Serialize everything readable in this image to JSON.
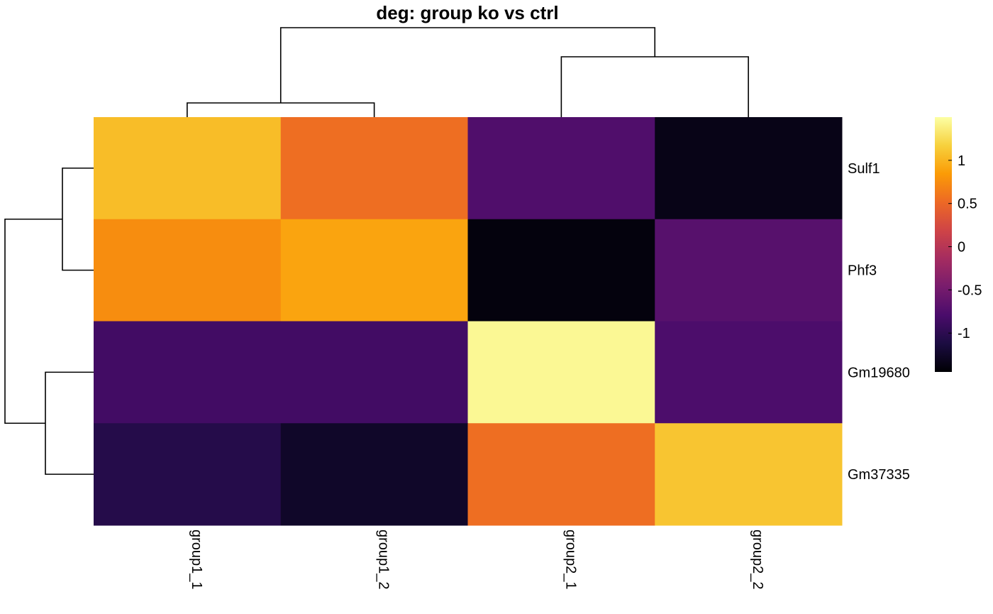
{
  "chart_data": {
    "type": "heatmap",
    "title": "deg: group ko vs ctrl",
    "columns": [
      "group1_1",
      "group1_2",
      "group2_1",
      "group2_2"
    ],
    "rows": [
      "Sulf1",
      "Phf3",
      "Gm19680",
      "Gm37335"
    ],
    "values": [
      [
        1.05,
        0.55,
        -0.75,
        -1.35
      ],
      [
        0.75,
        0.9,
        -1.4,
        -0.7
      ],
      [
        -0.85,
        -0.85,
        1.45,
        -0.78
      ],
      [
        -1.05,
        -1.25,
        0.55,
        1.1
      ]
    ],
    "colorbar": {
      "min": -1.45,
      "max": 1.5,
      "ticks": [
        1,
        0.5,
        0,
        -0.5,
        -1
      ],
      "tick_labels": [
        "1",
        "0.5",
        "0",
        "-0.5",
        "-1"
      ]
    },
    "colormap": [
      "#000004",
      "#1b0c41",
      "#4a0c6b",
      "#781c6d",
      "#a52c60",
      "#cf4446",
      "#ed6925",
      "#fb9b06",
      "#f7d13d",
      "#fcffa4"
    ],
    "column_dendrogram": "((group1_1,group1_2),(group2_1,group2_2))",
    "row_dendrogram": "((Sulf1,Phf3),(Gm19680,Gm37335))"
  }
}
